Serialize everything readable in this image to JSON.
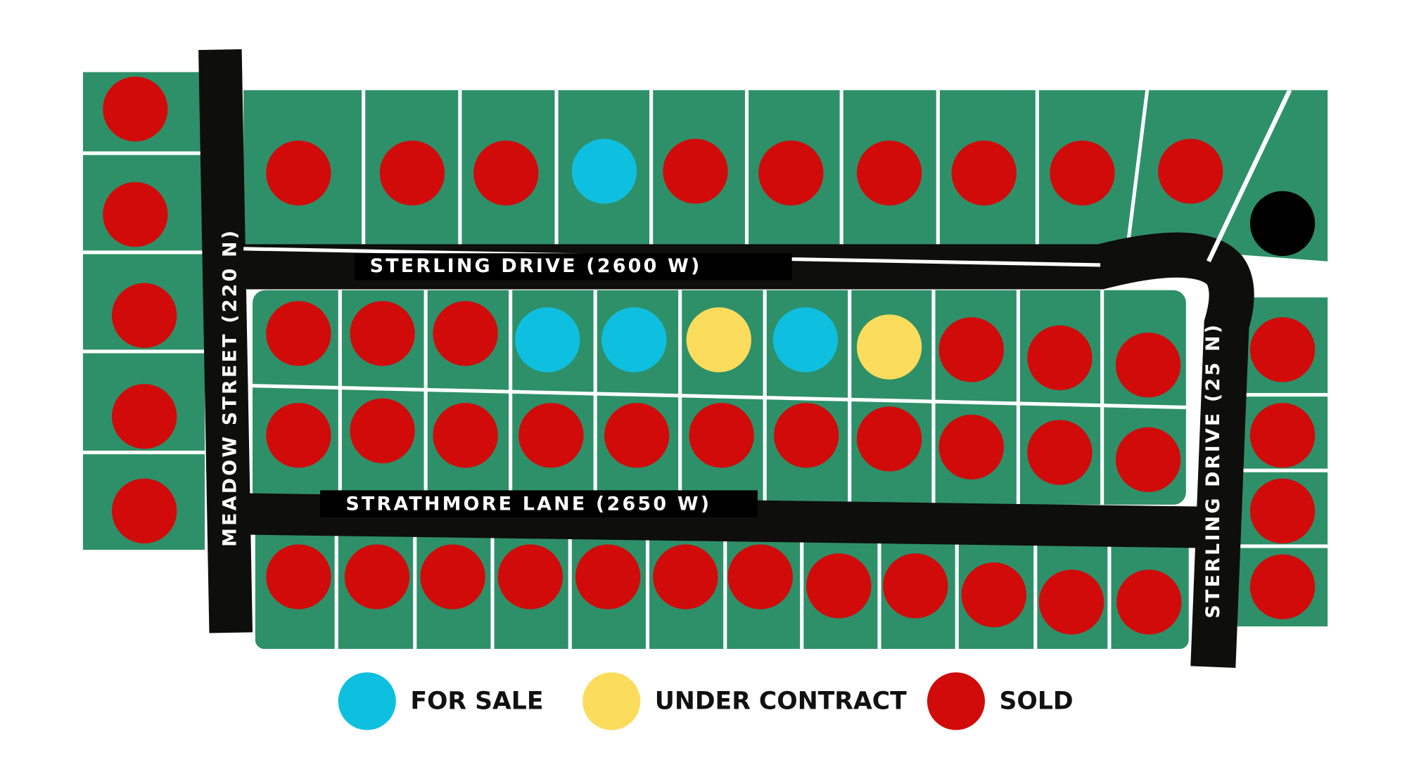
{
  "streets": [
    {
      "label": "STERLING DRIVE (2600 W)"
    },
    {
      "label": "STRATHMORE LANE (2650 W)"
    },
    {
      "label": "MEADOW STREET (220 N)"
    },
    {
      "label": "STERLING DRIVE (25 N)"
    }
  ],
  "legend": [
    {
      "label": "FOR SALE",
      "color": "#0fbfe0"
    },
    {
      "label": "UNDER CONTRACT",
      "color": "#fcdc5c"
    },
    {
      "label": "SOLD",
      "color": "#d10a0a"
    }
  ]
}
